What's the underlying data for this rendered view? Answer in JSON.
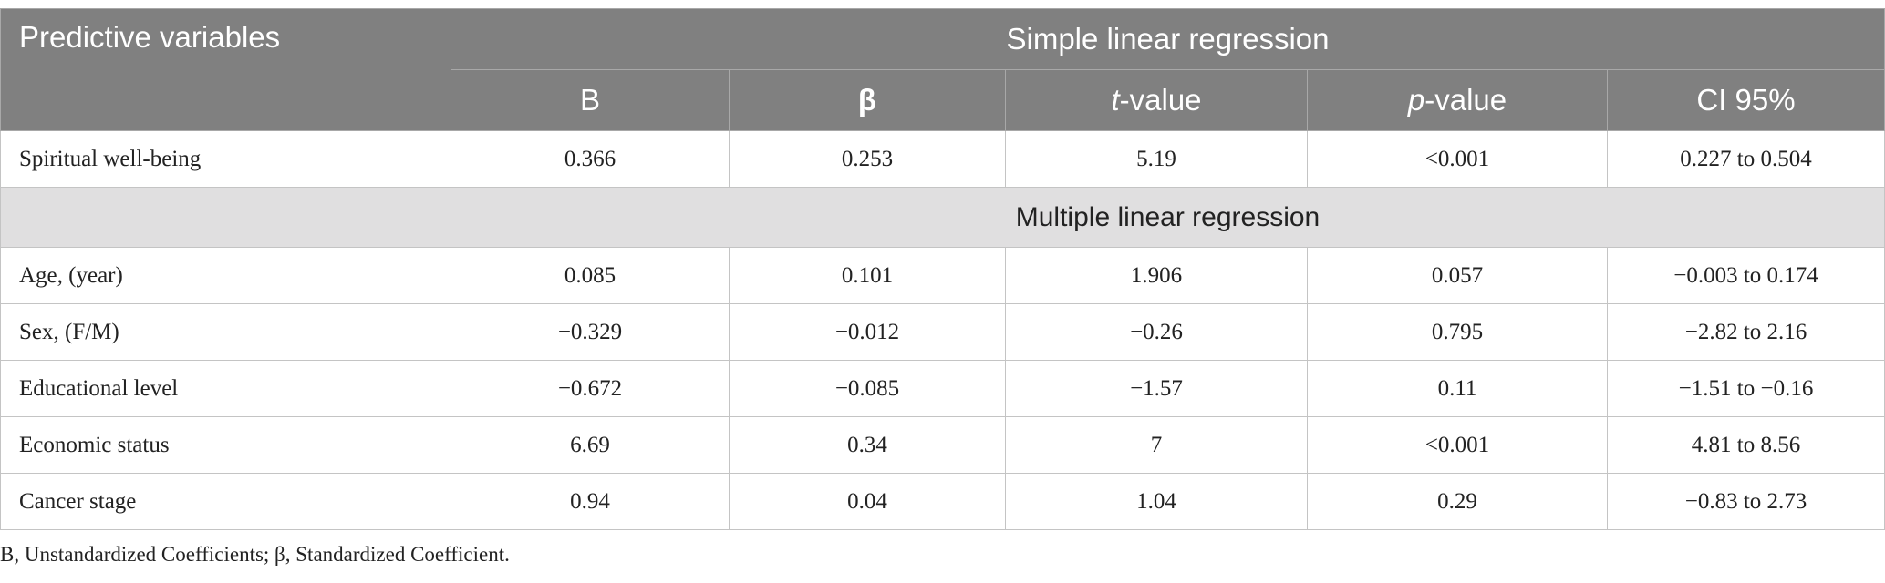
{
  "table": {
    "header": {
      "row_label": "Predictive variables",
      "group": "Simple linear regression",
      "columns": [
        "B",
        "β",
        [
          "t",
          "-value"
        ],
        [
          "p",
          "-value"
        ],
        "CI 95%"
      ]
    },
    "rows": [
      {
        "label": "Spiritual well-being",
        "cells": [
          "0.366",
          "0.253",
          "5.19",
          "<0.001",
          "0.227 to 0.504"
        ]
      }
    ],
    "section": "Multiple linear regression",
    "section_rows": [
      {
        "label": "Age, (year)",
        "cells": [
          "0.085",
          "0.101",
          "1.906",
          "0.057",
          "−0.003 to 0.174"
        ]
      },
      {
        "label": "Sex, (F/M)",
        "cells": [
          "−0.329",
          "−0.012",
          "−0.26",
          "0.795",
          "−2.82 to 2.16"
        ]
      },
      {
        "label": "Educational level",
        "cells": [
          "−0.672",
          "−0.085",
          "−1.57",
          "0.11",
          "−1.51 to −0.16"
        ]
      },
      {
        "label": "Economic status",
        "cells": [
          "6.69",
          "0.34",
          "7",
          "<0.001",
          "4.81 to 8.56"
        ]
      },
      {
        "label": "Cancer stage",
        "cells": [
          "0.94",
          "0.04",
          "1.04",
          "0.29",
          "−0.83 to 2.73"
        ]
      }
    ]
  },
  "footnote": "B, Unstandardized Coefficients; β, Standardized Coefficient."
}
